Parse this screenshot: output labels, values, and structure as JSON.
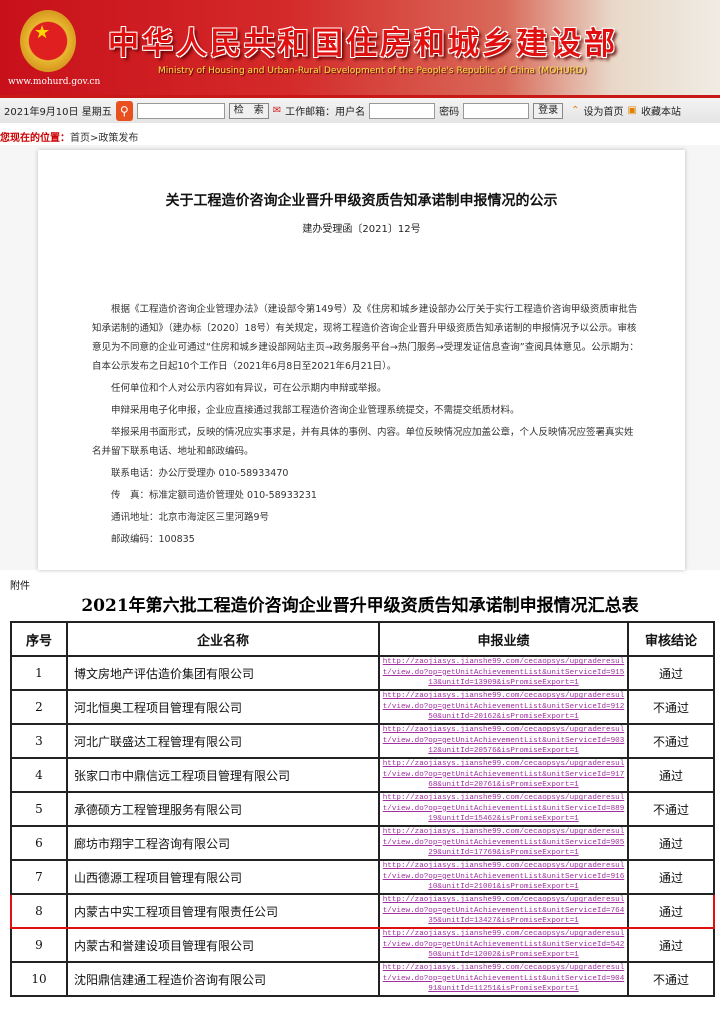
{
  "header": {
    "title_cn": "中华人民共和国住房和城乡建设部",
    "title_en": "Ministry of Housing and Urban-Rural Development of the People's Republic of China (MOHURD)",
    "site_url": "www.mohurd.gov.cn",
    "brand_color": "#c8101a"
  },
  "toolbar": {
    "date": "2021年9月10日 星期五",
    "search_label": "检　索",
    "mail_label": "工作邮箱：用户名",
    "password_label": "密码",
    "login_label": "登录",
    "set_home": "设为首页",
    "bookmark": "收藏本站",
    "search_value": "",
    "username_value": "",
    "password_value": ""
  },
  "breadcrumb": {
    "label": "您现在的位置：",
    "path": "首页>政策发布"
  },
  "doc": {
    "title": "关于工程造价咨询企业晋升甲级资质告知承诺制申报情况的公示",
    "number": "建办受理函〔2021〕12号",
    "paragraphs": [
      "根据《工程造价咨询企业管理办法》（建设部令第149号）及《住房和城乡建设部办公厅关于实行工程造价咨询甲级资质审批告知承诺制的通知》（建办标〔2020〕18号）有关规定，现将工程造价咨询企业晋升甲级资质告知承诺制的申报情况予以公示。审核意见为不同意的企业可通过“住房和城乡建设部网站主页→政务服务平台→热门服务→受理发证信息查询”查阅具体意见。公示期为：自本公示发布之日起10个工作日（2021年6月8日至2021年6月21日）。",
      "任何单位和个人对公示内容如有异议，可在公示期内申辩或举报。",
      "申辩采用电子化申报，企业应直接通过我部工程造价咨询企业管理系统提交，不需提交纸质材料。",
      "举报采用书面形式，反映的情况应实事求是，并有具体的事例、内容。单位反映情况应加盖公章，个人反映情况应签署真实姓名并留下联系电话、地址和邮政编码。",
      "联系电话：办公厅受理办 010-58933470",
      "传　真：标准定额司造价管理处 010-58933231",
      "通讯地址：北京市海淀区三里河路9号",
      "邮政编码：100835"
    ]
  },
  "attachment_label": "附件",
  "summary": {
    "title": "2021年第六批工程造价咨询企业晋升甲级资质告知承诺制申报情况汇总表",
    "headers": [
      "序号",
      "企业名称",
      "申报业绩",
      "审核结论"
    ],
    "highlight_color": "#e01010",
    "rows": [
      {
        "no": "1",
        "name": "博文房地产评估造价集团有限公司",
        "link": "http://zaojiasys.jianshe99.com/cecaopsys/upgraderesult/view.do?op=getUnitAchievementList&unitServiceId=91513&unitId=13909&isPromiseExport=1",
        "result": "通过"
      },
      {
        "no": "2",
        "name": "河北恒奥工程项目管理有限公司",
        "link": "http://zaojiasys.jianshe99.com/cecaopsys/upgraderesult/view.do?op=getUnitAchievementList&unitServiceId=91250&unitId=20162&isPromiseExport=1",
        "result": "不通过"
      },
      {
        "no": "3",
        "name": "河北广联盛达工程管理有限公司",
        "link": "http://zaojiasys.jianshe99.com/cecaopsys/upgraderesult/view.do?op=getUnitAchievementList&unitServiceId=90312&unitId=20576&isPromiseExport=1",
        "result": "不通过"
      },
      {
        "no": "4",
        "name": "张家口市中鼎信远工程项目管理有限公司",
        "link": "http://zaojiasys.jianshe99.com/cecaopsys/upgraderesult/view.do?op=getUnitAchievementList&unitServiceId=91768&unitId=20761&isPromiseExport=1",
        "result": "通过"
      },
      {
        "no": "5",
        "name": "承德硕方工程管理服务有限公司",
        "link": "http://zaojiasys.jianshe99.com/cecaopsys/upgraderesult/view.do?op=getUnitAchievementList&unitServiceId=88919&unitId=15462&isPromiseExport=1",
        "result": "不通过"
      },
      {
        "no": "6",
        "name": "廊坊市翔宇工程咨询有限公司",
        "link": "http://zaojiasys.jianshe99.com/cecaopsys/upgraderesult/view.do?op=getUnitAchievementList&unitServiceId=90529&unitId=17769&isPromiseExport=1",
        "result": "通过"
      },
      {
        "no": "7",
        "name": "山西德源工程项目管理有限公司",
        "link": "http://zaojiasys.jianshe99.com/cecaopsys/upgraderesult/view.do?op=getUnitAchievementList&unitServiceId=91610&unitId=21001&isPromiseExport=1",
        "result": "通过"
      },
      {
        "no": "8",
        "name": "内蒙古中实工程项目管理有限责任公司",
        "link": "http://zaojiasys.jianshe99.com/cecaopsys/upgraderesult/view.do?op=getUnitAchievementList&unitServiceId=76435&unitId=13427&isPromiseExport=1",
        "result": "通过",
        "highlighted": true
      },
      {
        "no": "9",
        "name": "内蒙古和誉建设项目管理有限公司",
        "link": "http://zaojiasys.jianshe99.com/cecaopsys/upgraderesult/view.do?op=getUnitAchievementList&unitServiceId=54250&unitId=12002&isPromiseExport=1",
        "result": "通过"
      },
      {
        "no": "10",
        "name": "沈阳鼎信建通工程造价咨询有限公司",
        "link": "http://zaojiasys.jianshe99.com/cecaopsys/upgraderesult/view.do?op=getUnitAchievementList&unitServiceId=90491&unitId=11251&isPromiseExport=1",
        "result": "不通过"
      }
    ]
  }
}
